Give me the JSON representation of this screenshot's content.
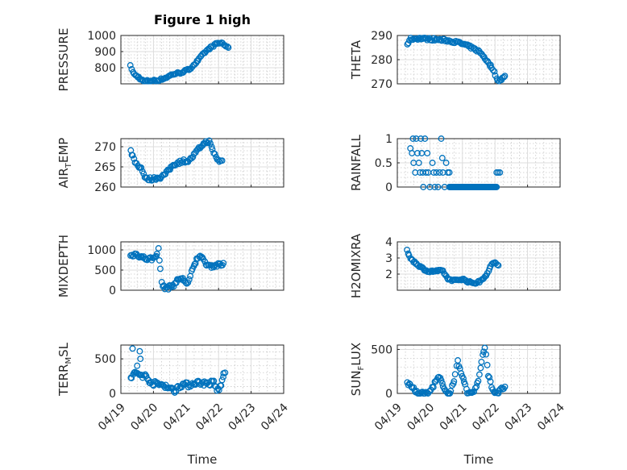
{
  "figure": {
    "title": "Figure 1 high"
  },
  "shared_x": {
    "label": "Time",
    "ticks": [
      "04/19",
      "04/20",
      "04/21",
      "04/22",
      "04/23",
      "04/24"
    ],
    "range": [
      "04/19",
      "04/24"
    ]
  },
  "chart_data": [
    {
      "type": "scatter",
      "title": "Figure 1 high",
      "ylabel": "PRESSURE",
      "ylim": [
        700,
        1000
      ],
      "yticks": [
        800,
        900,
        1000
      ],
      "xlim_days": [
        0,
        5
      ],
      "grid": true,
      "marker": "circle",
      "knots": [
        [
          0.3,
          810
        ],
        [
          0.4,
          760
        ],
        [
          0.55,
          740
        ],
        [
          0.7,
          715
        ],
        [
          0.9,
          720
        ],
        [
          1.1,
          720
        ],
        [
          1.35,
          735
        ],
        [
          1.6,
          760
        ],
        [
          1.85,
          770
        ],
        [
          2.1,
          790
        ],
        [
          2.35,
          840
        ],
        [
          2.55,
          890
        ],
        [
          2.75,
          925
        ],
        [
          2.95,
          950
        ],
        [
          3.1,
          955
        ],
        [
          3.25,
          930
        ],
        [
          3.3,
          920
        ]
      ],
      "spread": 6,
      "n": 85,
      "x_range": [
        0.3,
        3.3
      ]
    },
    {
      "type": "scatter",
      "ylabel": "THETA",
      "ylim": [
        270,
        290
      ],
      "yticks": [
        270,
        280,
        290
      ],
      "xlim_days": [
        0,
        5
      ],
      "grid": true,
      "marker": "circle",
      "knots": [
        [
          0.3,
          286.5
        ],
        [
          0.4,
          288.5
        ],
        [
          0.6,
          288.8
        ],
        [
          1.0,
          288.5
        ],
        [
          1.5,
          288.0
        ],
        [
          1.9,
          287.0
        ],
        [
          2.2,
          285.5
        ],
        [
          2.5,
          283.5
        ],
        [
          2.65,
          281.5
        ],
        [
          2.8,
          278.5
        ],
        [
          2.95,
          276.0
        ],
        [
          3.05,
          272.0
        ],
        [
          3.15,
          271.5
        ],
        [
          3.3,
          273.0
        ]
      ],
      "spread": 0.5,
      "n": 85,
      "x_range": [
        0.3,
        3.3
      ]
    },
    {
      "type": "scatter",
      "ylabel": "AIR_TEMP",
      "ylim": [
        260,
        272
      ],
      "yticks": [
        260,
        265,
        270
      ],
      "xlim_days": [
        0,
        5
      ],
      "grid": true,
      "marker": "circle",
      "knots": [
        [
          0.3,
          269
        ],
        [
          0.45,
          266
        ],
        [
          0.65,
          264.5
        ],
        [
          0.75,
          262
        ],
        [
          0.95,
          262
        ],
        [
          1.25,
          262.5
        ],
        [
          1.4,
          263.5
        ],
        [
          1.6,
          265.5
        ],
        [
          1.9,
          266.5
        ],
        [
          2.1,
          266.5
        ],
        [
          2.3,
          268.5
        ],
        [
          2.5,
          270.5
        ],
        [
          2.7,
          271.5
        ],
        [
          2.85,
          268.5
        ],
        [
          3.0,
          266.5
        ],
        [
          3.1,
          266.5
        ]
      ],
      "spread": 0.4,
      "n": 80,
      "x_range": [
        0.3,
        3.1
      ]
    },
    {
      "type": "scatter",
      "ylabel": "RAINFALL",
      "ylim": [
        0,
        1
      ],
      "yticks": [
        0,
        0.5,
        1
      ],
      "xlim_days": [
        0,
        5
      ],
      "grid": true,
      "marker": "circle",
      "points": [
        [
          0.4,
          0.8
        ],
        [
          0.45,
          0.7
        ],
        [
          0.48,
          1.0
        ],
        [
          0.5,
          0.5
        ],
        [
          0.55,
          0.3
        ],
        [
          0.58,
          1.0
        ],
        [
          0.62,
          0.7
        ],
        [
          0.66,
          0.5
        ],
        [
          0.7,
          0.3
        ],
        [
          0.72,
          1.0
        ],
        [
          0.75,
          0.7
        ],
        [
          0.78,
          0.3
        ],
        [
          0.8,
          0.0
        ],
        [
          0.85,
          1.0
        ],
        [
          0.88,
          0.3
        ],
        [
          0.92,
          0.7
        ],
        [
          0.95,
          0.3
        ],
        [
          1.0,
          0.0
        ],
        [
          1.08,
          0.5
        ],
        [
          1.12,
          0.3
        ],
        [
          1.15,
          0.0
        ],
        [
          1.2,
          0.3
        ],
        [
          1.25,
          0.0
        ],
        [
          1.3,
          0.3
        ],
        [
          1.35,
          1.0
        ],
        [
          1.38,
          0.6
        ],
        [
          1.4,
          0.3
        ],
        [
          1.45,
          0.0
        ],
        [
          1.5,
          0.5
        ],
        [
          1.55,
          0.3
        ],
        [
          1.6,
          0.3
        ],
        [
          1.65,
          0.0
        ],
        [
          3.05,
          0.3
        ],
        [
          3.1,
          0.3
        ],
        [
          3.15,
          0.3
        ]
      ],
      "zero_run": [
        1.6,
        3.05
      ]
    },
    {
      "type": "scatter",
      "ylabel": "MIXDEPTH",
      "ylim": [
        0,
        1200
      ],
      "yticks": [
        0,
        500,
        1000
      ],
      "xlim_days": [
        0,
        5
      ],
      "grid": true,
      "marker": "circle",
      "knots": [
        [
          0.3,
          850
        ],
        [
          0.45,
          900
        ],
        [
          0.65,
          820
        ],
        [
          0.8,
          780
        ],
        [
          1.0,
          780
        ],
        [
          1.1,
          900
        ],
        [
          1.15,
          1050
        ],
        [
          1.22,
          450
        ],
        [
          1.28,
          80
        ],
        [
          1.45,
          60
        ],
        [
          1.65,
          150
        ],
        [
          1.8,
          300
        ],
        [
          1.95,
          250
        ],
        [
          2.05,
          150
        ],
        [
          2.2,
          500
        ],
        [
          2.35,
          800
        ],
        [
          2.45,
          900
        ],
        [
          2.55,
          700
        ],
        [
          2.75,
          600
        ],
        [
          2.95,
          620
        ],
        [
          3.15,
          630
        ]
      ],
      "spread": 45,
      "n": 85,
      "x_range": [
        0.3,
        3.15
      ]
    },
    {
      "type": "scatter",
      "ylabel": "H2OMIXRA",
      "ylim": [
        1,
        4
      ],
      "yticks": [
        2,
        3,
        4
      ],
      "xlim_days": [
        0,
        5
      ],
      "grid": true,
      "marker": "circle",
      "knots": [
        [
          0.3,
          3.5
        ],
        [
          0.4,
          3.0
        ],
        [
          0.55,
          2.7
        ],
        [
          0.75,
          2.4
        ],
        [
          0.95,
          2.15
        ],
        [
          1.25,
          2.2
        ],
        [
          1.4,
          2.2
        ],
        [
          1.55,
          1.7
        ],
        [
          1.75,
          1.6
        ],
        [
          2.0,
          1.7
        ],
        [
          2.2,
          1.5
        ],
        [
          2.4,
          1.45
        ],
        [
          2.55,
          1.55
        ],
        [
          2.75,
          2.0
        ],
        [
          2.9,
          2.6
        ],
        [
          3.0,
          2.75
        ],
        [
          3.1,
          2.5
        ]
      ],
      "spread": 0.06,
      "n": 85,
      "x_range": [
        0.3,
        3.1
      ]
    },
    {
      "type": "scatter",
      "ylabel": "TERR_MSL",
      "ylim": [
        0,
        700
      ],
      "yticks": [
        0,
        500
      ],
      "xlim_days": [
        0,
        5
      ],
      "grid": true,
      "marker": "circle",
      "knots": [
        [
          0.3,
          220
        ],
        [
          0.45,
          300
        ],
        [
          0.6,
          270
        ],
        [
          0.75,
          250
        ],
        [
          0.95,
          150
        ],
        [
          1.2,
          130
        ],
        [
          1.4,
          110
        ],
        [
          1.55,
          60
        ],
        [
          1.65,
          30
        ],
        [
          1.75,
          100
        ],
        [
          1.9,
          130
        ],
        [
          2.1,
          120
        ],
        [
          2.3,
          160
        ],
        [
          2.5,
          150
        ],
        [
          2.7,
          140
        ],
        [
          2.85,
          160
        ],
        [
          2.95,
          40
        ],
        [
          3.05,
          90
        ],
        [
          3.1,
          150
        ],
        [
          3.15,
          260
        ]
      ],
      "spread": 35,
      "n": 85,
      "x_range": [
        0.3,
        3.15
      ],
      "extra_points": [
        [
          0.36,
          650
        ],
        [
          0.58,
          610
        ],
        [
          0.5,
          400
        ],
        [
          0.6,
          500
        ],
        [
          3.15,
          290
        ],
        [
          3.2,
          300
        ]
      ]
    },
    {
      "type": "scatter",
      "ylabel": "SUN_FLUX",
      "ylim": [
        0,
        550
      ],
      "yticks": [
        0,
        500
      ],
      "xlim_days": [
        0,
        5
      ],
      "grid": true,
      "marker": "circle",
      "knots": [
        [
          0.3,
          120
        ],
        [
          0.45,
          80
        ],
        [
          0.55,
          20
        ],
        [
          0.65,
          0
        ],
        [
          0.95,
          0
        ],
        [
          1.05,
          50
        ],
        [
          1.2,
          150
        ],
        [
          1.3,
          190
        ],
        [
          1.45,
          30
        ],
        [
          1.6,
          0
        ],
        [
          1.75,
          150
        ],
        [
          1.85,
          370
        ],
        [
          1.95,
          250
        ],
        [
          2.05,
          150
        ],
        [
          2.15,
          0
        ],
        [
          2.35,
          20
        ],
        [
          2.5,
          150
        ],
        [
          2.6,
          400
        ],
        [
          2.7,
          520
        ],
        [
          2.8,
          200
        ],
        [
          2.95,
          20
        ],
        [
          3.1,
          10
        ],
        [
          3.2,
          50
        ],
        [
          3.3,
          70
        ]
      ],
      "spread": 18,
      "n": 90,
      "x_range": [
        0.3,
        3.3
      ]
    }
  ]
}
